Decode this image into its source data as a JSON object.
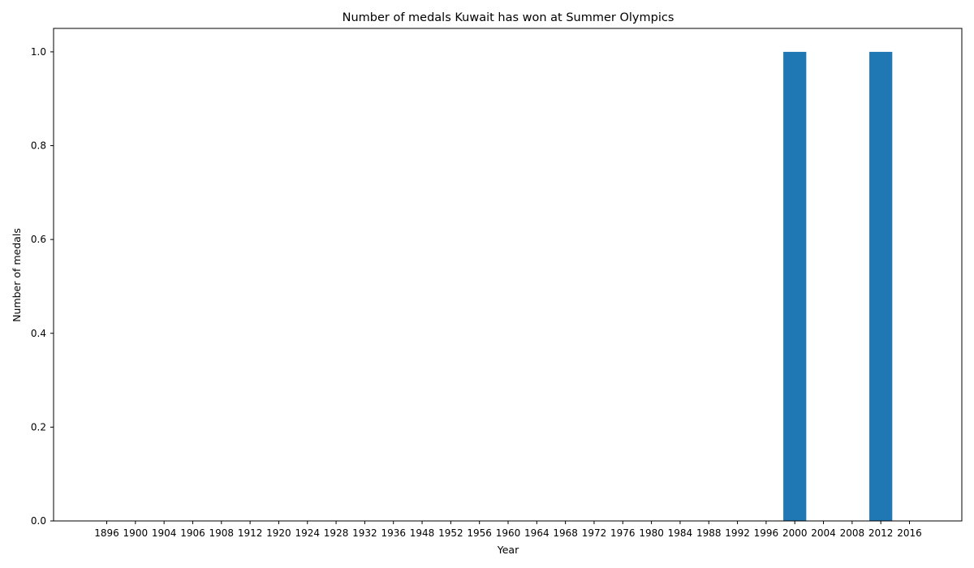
{
  "chart_data": {
    "type": "bar",
    "title": "Number of medals Kuwait has won at Summer Olympics",
    "xlabel": "Year",
    "ylabel": "Number of medals",
    "categories": [
      "1896",
      "1900",
      "1904",
      "1906",
      "1908",
      "1912",
      "1920",
      "1924",
      "1928",
      "1932",
      "1936",
      "1948",
      "1952",
      "1956",
      "1960",
      "1964",
      "1968",
      "1972",
      "1976",
      "1980",
      "1984",
      "1988",
      "1992",
      "1996",
      "2000",
      "2004",
      "2008",
      "2012",
      "2016"
    ],
    "values": [
      0,
      0,
      0,
      0,
      0,
      0,
      0,
      0,
      0,
      0,
      0,
      0,
      0,
      0,
      0,
      0,
      0,
      0,
      0,
      0,
      0,
      0,
      0,
      0,
      1,
      0,
      0,
      1,
      0
    ],
    "ylim": [
      0,
      1.05
    ],
    "yticks": [
      "0.0",
      "0.2",
      "0.4",
      "0.6",
      "0.8",
      "1.0"
    ],
    "grid": false,
    "bar_color": "#1f77b4"
  }
}
